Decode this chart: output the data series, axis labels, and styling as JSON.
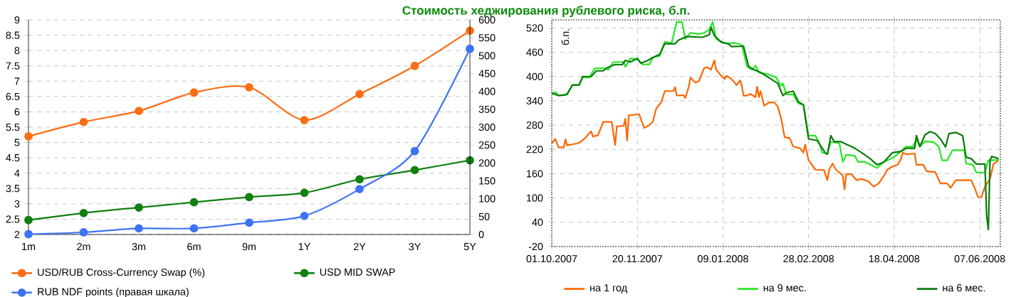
{
  "chart_data": [
    {
      "type": "line",
      "categories": [
        "1m",
        "2m",
        "3m",
        "6m",
        "9m",
        "1Y",
        "2Y",
        "3Y",
        "5Y"
      ],
      "ylim": [
        2,
        9
      ],
      "yticks": [
        2,
        2.5,
        3,
        3.5,
        4,
        4.5,
        5,
        5.5,
        6,
        6.5,
        7,
        7.5,
        8,
        8.5,
        9
      ],
      "y2lim": [
        0,
        600
      ],
      "y2ticks": [
        0,
        50,
        100,
        150,
        200,
        250,
        300,
        350,
        400,
        450,
        500,
        550,
        600
      ],
      "grid": "y",
      "legend": "bottom",
      "marker": "circle",
      "series": [
        {
          "name": "USD/RUB Cross-Currency Swap (%)",
          "color": "#fb6d16",
          "values": [
            5.2,
            5.67,
            6.03,
            6.63,
            6.8,
            5.73,
            6.58,
            7.5,
            8.65
          ]
        },
        {
          "name": "USD MID SWAP",
          "color": "#117f11",
          "values": [
            2.47,
            2.7,
            2.88,
            3.05,
            3.22,
            3.36,
            3.8,
            4.1,
            4.42
          ]
        },
        {
          "name": "RUB NDF points (правая шкала)",
          "color": "#3f73f5",
          "axis": "y2",
          "values": [
            1,
            6,
            17,
            17,
            33,
            52,
            127,
            233,
            519
          ]
        }
      ]
    },
    {
      "type": "line",
      "title": "Стоимость хеджирования рублевого риска, б.п.",
      "ylabel": "б.п.",
      "xlim": [
        "2007-10-01",
        "2008-06-19"
      ],
      "xticks": [
        {
          "value": "2007-10-01",
          "label": "01.10.2007"
        },
        {
          "value": "2007-11-20",
          "label": "20.11.2007"
        },
        {
          "value": "2008-01-09",
          "label": "09.01.2008"
        },
        {
          "value": "2008-02-28",
          "label": "28.02.2008"
        },
        {
          "value": "2008-04-18",
          "label": "18.04.2008"
        },
        {
          "value": "2008-06-07",
          "label": "07.06.2008"
        }
      ],
      "ylim": [
        -20,
        540
      ],
      "yticks": [
        -20,
        40,
        100,
        160,
        220,
        280,
        340,
        400,
        460,
        520
      ],
      "grid": true,
      "legend": "bottom",
      "series": [
        {
          "name": "на 1 год",
          "color": "#ff6600",
          "x": [
            "2007-10-01",
            "2007-10-03",
            "2007-10-05",
            "2007-10-08",
            "2007-10-09",
            "2007-10-10",
            "2007-10-16",
            "2007-10-18",
            "2007-10-20",
            "2007-10-24",
            "2007-10-25",
            "2007-10-28",
            "2007-10-31",
            "2007-11-05",
            "2007-11-07",
            "2007-11-08",
            "2007-11-12",
            "2007-11-13",
            "2007-11-14",
            "2007-11-15",
            "2007-11-21",
            "2007-11-24",
            "2007-11-27",
            "2007-11-29",
            "2007-12-01",
            "2007-12-04",
            "2007-12-06",
            "2007-12-11",
            "2007-12-12",
            "2007-12-13",
            "2007-12-17",
            "2007-12-18",
            "2007-12-20",
            "2007-12-21",
            "2007-12-24",
            "2007-12-26",
            "2007-12-29",
            "2007-12-31",
            "2008-01-02",
            "2008-01-04",
            "2008-01-05",
            "2008-01-08",
            "2008-01-10",
            "2008-01-11",
            "2008-01-14",
            "2008-01-17",
            "2008-01-19",
            "2008-01-20",
            "2008-01-21",
            "2008-01-23",
            "2008-01-25",
            "2008-01-28",
            "2008-01-29",
            "2008-01-30",
            "2008-01-31",
            "2008-02-02",
            "2008-02-05",
            "2008-02-08",
            "2008-02-10",
            "2008-02-12",
            "2008-02-14",
            "2008-02-17",
            "2008-02-19",
            "2008-02-23",
            "2008-02-25",
            "2008-02-26",
            "2008-02-28",
            "2008-03-03",
            "2008-03-08",
            "2008-03-10",
            "2008-03-11",
            "2008-03-13",
            "2008-03-15",
            "2008-03-17",
            "2008-03-19",
            "2008-03-20",
            "2008-03-21",
            "2008-03-24",
            "2008-03-27",
            "2008-03-30",
            "2008-04-03",
            "2008-04-06",
            "2008-04-09",
            "2008-04-12",
            "2008-04-14",
            "2008-04-17",
            "2008-04-20",
            "2008-04-22",
            "2008-04-23",
            "2008-04-25",
            "2008-04-30",
            "2008-05-01",
            "2008-05-05",
            "2008-05-07",
            "2008-05-12",
            "2008-05-15",
            "2008-05-19",
            "2008-05-21",
            "2008-05-24",
            "2008-05-28",
            "2008-06-02",
            "2008-06-04",
            "2008-06-06",
            "2008-06-08",
            "2008-06-10",
            "2008-06-13",
            "2008-06-15",
            "2008-06-18"
          ],
          "values": [
            235,
            246,
            225,
            225,
            245,
            230,
            235,
            239,
            246,
            265,
            252,
            255,
            288,
            288,
            231,
            277,
            278,
            296,
            242,
            304,
            307,
            273,
            280,
            288,
            321,
            337,
            364,
            364,
            374,
            353,
            354,
            347,
            375,
            397,
            385,
            389,
            421,
            423,
            417,
            440,
            417,
            402,
            394,
            402,
            394,
            379,
            391,
            377,
            353,
            353,
            357,
            349,
            375,
            349,
            364,
            328,
            336,
            336,
            326,
            296,
            250,
            248,
            227,
            223,
            212,
            232,
            193,
            170,
            169,
            144,
            170,
            185,
            170,
            163,
            155,
            121,
            159,
            159,
            144,
            147,
            141,
            128,
            136,
            155,
            170,
            178,
            182,
            197,
            212,
            208,
            210,
            182,
            182,
            166,
            164,
            136,
            136,
            125,
            144,
            144,
            144,
            125,
            102,
            102,
            128,
            147,
            184,
            193
          ]
        },
        {
          "name": "на 9 мес.",
          "color": "#22e822",
          "x": [
            "2007-10-01",
            "2007-10-03",
            "2007-10-05",
            "2007-10-09",
            "2007-10-11",
            "2007-10-13",
            "2007-10-17",
            "2007-10-19",
            "2007-10-23",
            "2007-10-26",
            "2007-10-31",
            "2007-11-03",
            "2007-11-06",
            "2007-11-12",
            "2007-11-13",
            "2007-11-16",
            "2007-11-20",
            "2007-11-23",
            "2007-11-27",
            "2007-11-29",
            "2007-12-03",
            "2007-12-06",
            "2007-12-10",
            "2007-12-13",
            "2007-12-16",
            "2007-12-18",
            "2007-12-21",
            "2007-12-26",
            "2007-12-29",
            "2008-01-01",
            "2008-01-03",
            "2008-01-05",
            "2008-01-10",
            "2008-01-16",
            "2008-01-20",
            "2008-01-23",
            "2008-01-26",
            "2008-01-28",
            "2008-01-30",
            "2008-02-04",
            "2008-02-09",
            "2008-02-12",
            "2008-02-13",
            "2008-02-15",
            "2008-02-19",
            "2008-02-22",
            "2008-02-25",
            "2008-02-28",
            "2008-03-03",
            "2008-03-05",
            "2008-03-07",
            "2008-03-10",
            "2008-03-12",
            "2008-03-17",
            "2008-03-19",
            "2008-03-21",
            "2008-03-26",
            "2008-03-28",
            "2008-04-01",
            "2008-04-08",
            "2008-04-12",
            "2008-04-18",
            "2008-04-22",
            "2008-04-25",
            "2008-04-29",
            "2008-05-01",
            "2008-05-03",
            "2008-05-06",
            "2008-05-11",
            "2008-05-14",
            "2008-05-16",
            "2008-05-19",
            "2008-05-22",
            "2008-05-29",
            "2008-05-30",
            "2008-06-03",
            "2008-06-05",
            "2008-06-10",
            "2008-06-12",
            "2008-06-18"
          ],
          "values": [
            356,
            362,
            353,
            354,
            364,
            379,
            379,
            398,
            398,
            420,
            421,
            417,
            436,
            436,
            424,
            445,
            442,
            430,
            430,
            447,
            451,
            486,
            483,
            535,
            535,
            493,
            508,
            505,
            508,
            516,
            535,
            493,
            482,
            483,
            478,
            425,
            417,
            427,
            410,
            406,
            398,
            377,
            383,
            356,
            356,
            334,
            330,
            254,
            254,
            239,
            212,
            210,
            239,
            235,
            189,
            207,
            204,
            189,
            189,
            174,
            189,
            201,
            216,
            227,
            227,
            246,
            227,
            240,
            238,
            227,
            193,
            193,
            218,
            218,
            185,
            182,
            163,
            163,
            193,
            194
          ]
        },
        {
          "name": "на 6 мес.",
          "color": "#0a7a0a",
          "x": [
            "2007-10-01",
            "2007-10-05",
            "2007-10-10",
            "2007-10-13",
            "2007-10-17",
            "2007-10-19",
            "2007-10-24",
            "2007-10-27",
            "2007-10-31",
            "2007-11-02",
            "2007-11-07",
            "2007-11-11",
            "2007-11-13",
            "2007-11-16",
            "2007-11-20",
            "2007-11-22",
            "2007-11-26",
            "2007-11-29",
            "2007-12-03",
            "2007-12-06",
            "2007-12-12",
            "2007-12-14",
            "2007-12-19",
            "2007-12-28",
            "2008-01-01",
            "2008-01-02",
            "2008-01-04",
            "2008-01-08",
            "2008-01-12",
            "2008-01-14",
            "2008-01-21",
            "2008-01-24",
            "2008-01-27",
            "2008-01-31",
            "2008-02-06",
            "2008-02-10",
            "2008-02-13",
            "2008-02-15",
            "2008-02-19",
            "2008-02-22",
            "2008-02-25",
            "2008-02-28",
            "2008-03-04",
            "2008-03-07",
            "2008-03-09",
            "2008-03-10",
            "2008-03-12",
            "2008-03-14",
            "2008-03-18",
            "2008-03-21",
            "2008-03-26",
            "2008-03-30",
            "2008-04-04",
            "2008-04-08",
            "2008-04-12",
            "2008-04-17",
            "2008-04-22",
            "2008-04-25",
            "2008-04-30",
            "2008-05-01",
            "2008-05-03",
            "2008-05-06",
            "2008-05-09",
            "2008-05-12",
            "2008-05-15",
            "2008-05-18",
            "2008-05-20",
            "2008-05-24",
            "2008-05-28",
            "2008-05-30",
            "2008-06-02",
            "2008-06-05",
            "2008-06-10",
            "2008-06-11",
            "2008-06-12",
            "2008-06-13",
            "2008-06-14",
            "2008-06-18"
          ],
          "values": [
            359,
            353,
            356,
            379,
            379,
            400,
            400,
            414,
            414,
            421,
            430,
            429,
            440,
            436,
            445,
            433,
            440,
            447,
            455,
            481,
            481,
            490,
            499,
            497,
            503,
            522,
            501,
            485,
            481,
            474,
            475,
            425,
            417,
            410,
            394,
            383,
            353,
            360,
            364,
            338,
            330,
            246,
            242,
            223,
            210,
            208,
            254,
            239,
            239,
            233,
            223,
            212,
            197,
            182,
            189,
            212,
            215,
            223,
            223,
            254,
            227,
            256,
            264,
            259,
            246,
            226,
            259,
            262,
            254,
            201,
            197,
            184,
            184,
            56,
            22,
            193,
            203,
            197
          ]
        }
      ]
    }
  ]
}
